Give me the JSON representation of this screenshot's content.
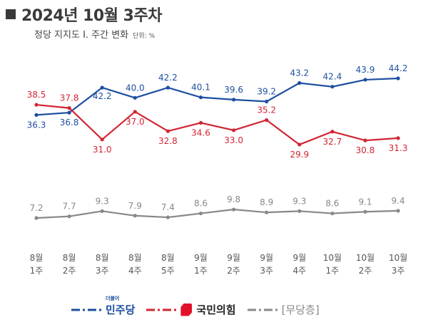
{
  "header": {
    "title": "2024년 10월 3주차",
    "subtitle": "정당 지지도  Ⅰ. 주간 변화",
    "unit": "단위: %"
  },
  "legend": {
    "dem_label": "민주당",
    "dem_small": "더불어",
    "ppp_label": "국민의힘",
    "ind_label": "[무당층]"
  },
  "colors": {
    "dem": "#1d4fa0",
    "ppp": "#d22533",
    "ind": "#888888"
  },
  "chart_data": {
    "type": "line",
    "categories": [
      [
        "8월",
        "1주"
      ],
      [
        "8월",
        "2주"
      ],
      [
        "8월",
        "3주"
      ],
      [
        "8월",
        "4주"
      ],
      [
        "8월",
        "5주"
      ],
      [
        "9월",
        "1주"
      ],
      [
        "9월",
        "2주"
      ],
      [
        "9월",
        "3주"
      ],
      [
        "9월",
        "4주"
      ],
      [
        "10월",
        "1주"
      ],
      [
        "10월",
        "2주"
      ],
      [
        "10월",
        "3주"
      ]
    ],
    "series": [
      {
        "key": "dem",
        "name": "민주당",
        "values": [
          36.3,
          36.8,
          42.2,
          40.0,
          42.2,
          40.1,
          39.6,
          39.2,
          43.2,
          42.4,
          43.9,
          44.2
        ],
        "labels": [
          "36.3",
          "36.8",
          "42.2",
          "40.0",
          "42.2",
          "40.1",
          "39.6",
          "39.2",
          "43.2",
          "42.4",
          "43.9",
          "44.2"
        ]
      },
      {
        "key": "ppp",
        "name": "국민의힘",
        "values": [
          38.5,
          37.8,
          31.0,
          37.0,
          32.8,
          34.6,
          33.0,
          35.2,
          29.9,
          32.7,
          30.8,
          31.3
        ],
        "labels": [
          "38.5",
          "37.8",
          "31.0",
          "37.0",
          "32.8",
          "34.6",
          "33.0",
          "35.2",
          "29.9",
          "32.7",
          "30.8",
          "31.3"
        ]
      },
      {
        "key": "ind",
        "name": "[무당층]",
        "values": [
          7.2,
          7.7,
          9.3,
          7.9,
          7.4,
          8.6,
          9.8,
          8.9,
          9.3,
          8.6,
          9.1,
          9.4
        ],
        "labels": [
          "7.2",
          "7.7",
          "9.3",
          "7.9",
          "7.4",
          "8.6",
          "9.8",
          "8.9",
          "9.3",
          "8.6",
          "9.1",
          "9.4"
        ]
      }
    ]
  }
}
